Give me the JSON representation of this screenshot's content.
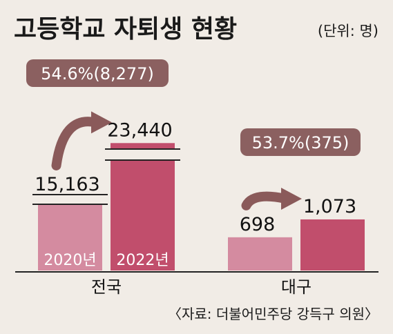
{
  "chart_data": {
    "type": "bar",
    "title": "고등학교 자퇴생 현황",
    "unit_note": "(단위: 명)",
    "groups": [
      {
        "name": "전국",
        "values": [
          15163,
          23440
        ],
        "value_labels": [
          "15,163",
          "23,440"
        ],
        "axis_break": true,
        "change_label": "54.6%(8,277)"
      },
      {
        "name": "대구",
        "values": [
          698,
          1073
        ],
        "value_labels": [
          "698",
          "1,073"
        ],
        "axis_break": false,
        "change_label": "53.7%(375)"
      }
    ],
    "series": [
      {
        "name": "2020년",
        "color": "#d48ba0"
      },
      {
        "name": "2022년",
        "color": "#c14e6c"
      }
    ],
    "source": "〈자료: 더불어민주당 강득구 의원〉"
  },
  "colors": {
    "background": "#f1ece6",
    "callout": "#8b6060",
    "arrow": "#8a5a5a",
    "axis": "#222222"
  }
}
